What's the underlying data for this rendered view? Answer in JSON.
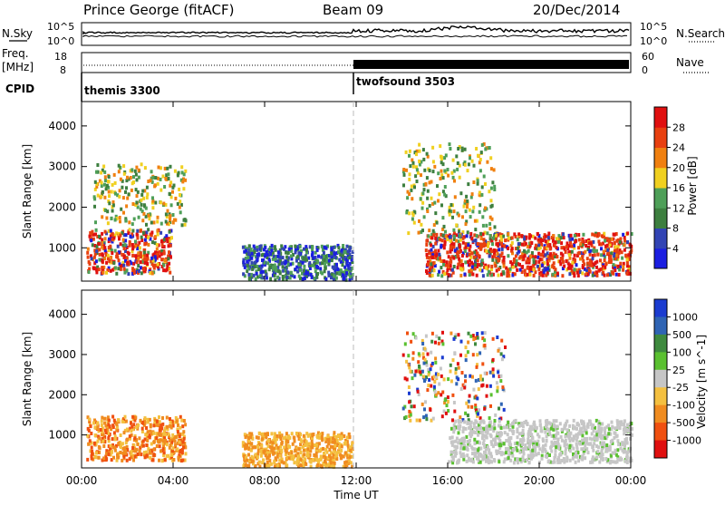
{
  "header": {
    "station": "Prince George (fitACF)",
    "beam": "Beam 09",
    "date": "20/Dec/2014"
  },
  "strip_nsky": {
    "left_label": "N.Sky",
    "right_label": "N.Search",
    "left_ticks": [
      "10^5",
      "10^0"
    ],
    "right_ticks": [
      "10^5",
      "10^0"
    ]
  },
  "strip_freq": {
    "left_label_1": "Freq.",
    "left_label_2": "[MHz]",
    "right_label": "Nave",
    "left_ticks": [
      "18",
      "8"
    ],
    "right_ticks": [
      "60",
      "0"
    ]
  },
  "strip_cpid": {
    "left_label": "CPID",
    "programs": [
      {
        "name": "themis 3300",
        "start_hour": 0
      },
      {
        "name": "twofsound 3503",
        "start_hour": 12
      }
    ]
  },
  "time_axis": {
    "label": "Time UT",
    "ticks": [
      "00:00",
      "04:00",
      "08:00",
      "12:00",
      "16:00",
      "20:00",
      "00:00"
    ]
  },
  "colors": {
    "power": [
      "#1b1ee0",
      "#3244b4",
      "#3d7f3f",
      "#4e9f58",
      "#f0d020",
      "#f08010",
      "#e84010",
      "#e01010"
    ],
    "velocity": [
      "#1b3cd0",
      "#2f64b4",
      "#3e8a3e",
      "#5ac030",
      "#c6c6c6",
      "#f4c040",
      "#f08c20",
      "#f05010",
      "#e01010"
    ]
  },
  "chart_data": [
    {
      "type": "heatmap",
      "title": "Power",
      "xlabel": "Time UT",
      "ylabel": "Slant Range [km]",
      "x_ticks": [
        "00:00",
        "04:00",
        "08:00",
        "12:00",
        "16:00",
        "20:00",
        "00:00"
      ],
      "xlim_hours": [
        0,
        24
      ],
      "ylim": [
        180,
        4600
      ],
      "y_ticks": [
        1000,
        2000,
        3000,
        4000
      ],
      "colorbar": {
        "label": "Power [dB]",
        "ticks": [
          "4",
          "8",
          "12",
          "16",
          "20",
          "24",
          "28"
        ]
      },
      "regions": [
        {
          "t0": 0.2,
          "t1": 3.9,
          "r0": 400,
          "r1": 1500,
          "level": "high"
        },
        {
          "t0": 0.5,
          "t1": 4.5,
          "r0": 1600,
          "r1": 3100,
          "level": "patchy"
        },
        {
          "t0": 7.0,
          "t1": 11.8,
          "r0": 250,
          "r1": 1100,
          "level": "low"
        },
        {
          "t0": 14.0,
          "t1": 18.0,
          "r0": 1400,
          "r1": 3600,
          "level": "patchy"
        },
        {
          "t0": 15.0,
          "t1": 24.0,
          "r0": 350,
          "r1": 1400,
          "level": "high"
        }
      ]
    },
    {
      "type": "heatmap",
      "title": "Velocity",
      "xlabel": "Time UT",
      "ylabel": "Slant Range [km]",
      "x_ticks": [
        "00:00",
        "04:00",
        "08:00",
        "12:00",
        "16:00",
        "20:00",
        "00:00"
      ],
      "xlim_hours": [
        0,
        24
      ],
      "ylim": [
        180,
        4600
      ],
      "y_ticks": [
        1000,
        2000,
        3000,
        4000
      ],
      "colorbar": {
        "label": "Velocity [m s^-1]",
        "ticks": [
          "1000",
          "500",
          "100",
          "25",
          "-25",
          "-100",
          "-500",
          "-1000"
        ]
      },
      "regions": [
        {
          "t0": 0.2,
          "t1": 4.5,
          "r0": 400,
          "r1": 1500,
          "level": "receding"
        },
        {
          "t0": 7.0,
          "t1": 11.8,
          "r0": 250,
          "r1": 1100,
          "level": "receding-low"
        },
        {
          "t0": 14.0,
          "t1": 18.5,
          "r0": 1400,
          "r1": 3600,
          "level": "mixed"
        },
        {
          "t0": 16.0,
          "t1": 24.0,
          "r0": 350,
          "r1": 1400,
          "level": "ground"
        }
      ]
    }
  ]
}
